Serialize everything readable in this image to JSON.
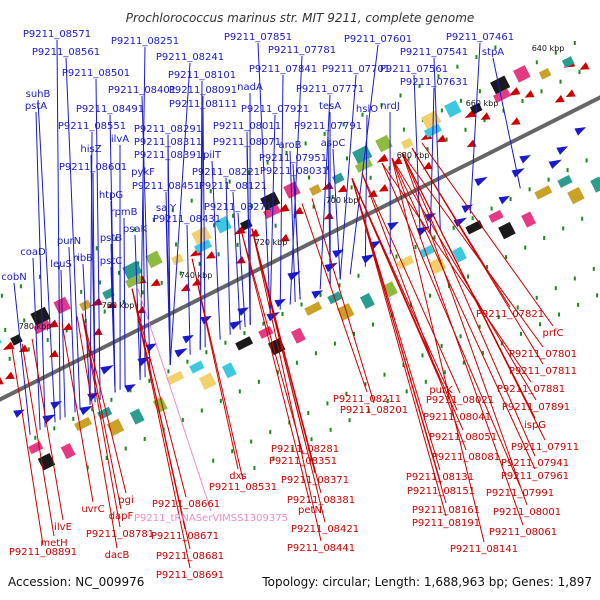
{
  "title": "Prochlorococcus marinus str. MIT 9211, complete genome",
  "accession_text": "Accession: NC_009976",
  "summary_text": "Topology: circular; Length: 1,688,963 bp; Genes: 1,897",
  "colors": {
    "forward": "#1a1acc",
    "reverse": "#cc0000",
    "rna": "#f08cc8",
    "backbone": "#666666",
    "tick": "#1a8a1a"
  },
  "scale_labels": [
    "640 kbp",
    "660 kbp",
    "680 kbp",
    "700 kbp",
    "720 kbp",
    "740 kbp",
    "760 kbp",
    "780 kbp"
  ],
  "forward_genes": [
    "P9211_08571",
    "P9211_08561",
    "P9211_08251",
    "P9211_08241",
    "P9211_07851",
    "P9211_07781",
    "P9211_07601",
    "P9211_07461",
    "P9211_07541",
    "stpA",
    "P9211_08501",
    "P9211_08101",
    "P9211_07841",
    "P9211_07701",
    "P9211_07561",
    "suhB",
    "P9211_08401",
    "P9211_08091",
    "nadA",
    "P9211_07771",
    "P9211_07631",
    "pstA",
    "P9211_08491",
    "P9211_08111",
    "P9211_07921",
    "tesA",
    "hslO",
    "nrdJ",
    "P9211_08551",
    "P9211_08291",
    "P9211_08011",
    "P9211_07791",
    "ilvA",
    "P9211_08311",
    "P9211_08071",
    "aroB",
    "aspC",
    "hisZ",
    "P9211_08391",
    "pilT",
    "P9211_07951",
    "P9211_08601",
    "pykF",
    "P9211_08221",
    "P9211_08031",
    "htpG",
    "P9211_08451",
    "P9211_08121",
    "rpmB",
    "salY",
    "P9211_08271",
    "P9211_08431",
    "pstB",
    "psaK",
    "purN",
    "coaD",
    "ribB",
    "leuS",
    "pstC",
    "cobN"
  ],
  "reverse_genes": [
    "P9211_07821",
    "prfC",
    "P9211_07801",
    "P9211_07811",
    "purK",
    "P9211_07881",
    "P9211_08211",
    "P9211_08021",
    "P9211_07891",
    "P9211_08201",
    "P9211_08041",
    "ispG",
    "P9211_08051",
    "P9211_07911",
    "P9211_08281",
    "P9211_08081",
    "P9211_07941",
    "P9211_08351",
    "P9211_07961",
    "dxs",
    "P9211_08131",
    "P9211_08371",
    "P9211_07991",
    "P9211_08531",
    "P9211_08151",
    "P9211_08381",
    "uvrC",
    "pgi",
    "P9211_08661",
    "P9211_08001",
    "dapF",
    "P9211_08161",
    "petN",
    "P9211_08191",
    "P9211_08061",
    "ilvE",
    "P9211_08781",
    "P9211_08671",
    "P9211_08421",
    "metH",
    "P9211_08141",
    "dacB",
    "P9211_08891",
    "P9211_08681",
    "P9211_08441",
    "P9211_08691"
  ],
  "rna_genes": [
    "P9211_tRNASerVIMSS1309375"
  ]
}
